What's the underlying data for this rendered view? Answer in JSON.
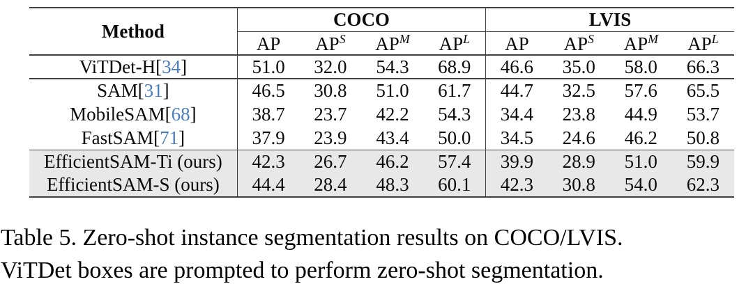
{
  "colors": {
    "citation_blue": "#4a7dbd",
    "row_highlight": "#e8e8e8",
    "rule_dark": "#404040"
  },
  "table": {
    "method_header": "Method",
    "groups": [
      {
        "label": "COCO"
      },
      {
        "label": "LVIS"
      }
    ],
    "subheaders": [
      {
        "base": "AP",
        "sup": ""
      },
      {
        "base": "AP",
        "sup": "S"
      },
      {
        "base": "AP",
        "sup": "M"
      },
      {
        "base": "AP",
        "sup": "L"
      }
    ],
    "rows": [
      {
        "method_pre": "ViTDet-H[",
        "cite": "34",
        "method_post": "]",
        "values": [
          "51.0",
          "32.0",
          "54.3",
          "68.9",
          "46.6",
          "35.0",
          "58.0",
          "66.3"
        ],
        "highlight": false,
        "rule_after": "thick"
      },
      {
        "method_pre": "SAM[",
        "cite": "31",
        "method_post": "]",
        "values": [
          "46.5",
          "30.8",
          "51.0",
          "61.7",
          "44.7",
          "32.5",
          "57.6",
          "65.5"
        ],
        "highlight": false,
        "rule_after": ""
      },
      {
        "method_pre": "MobileSAM[",
        "cite": "68",
        "method_post": "]",
        "values": [
          "38.7",
          "23.7",
          "42.2",
          "54.3",
          "34.4",
          "23.8",
          "44.9",
          "53.7"
        ],
        "highlight": false,
        "rule_after": ""
      },
      {
        "method_pre": "FastSAM[",
        "cite": "71",
        "method_post": "]",
        "values": [
          "37.9",
          "23.9",
          "43.4",
          "50.0",
          "34.5",
          "24.6",
          "46.2",
          "50.8"
        ],
        "highlight": false,
        "rule_after": "thin"
      },
      {
        "method_pre": "EfficientSAM-Ti (ours)",
        "cite": "",
        "method_post": "",
        "values": [
          "42.3",
          "26.7",
          "46.2",
          "57.4",
          "39.9",
          "28.9",
          "51.0",
          "59.9"
        ],
        "highlight": true,
        "rule_after": ""
      },
      {
        "method_pre": "EfficientSAM-S (ours)",
        "cite": "",
        "method_post": "",
        "values": [
          "44.4",
          "28.4",
          "48.3",
          "60.1",
          "42.3",
          "30.8",
          "54.0",
          "62.3"
        ],
        "highlight": true,
        "rule_after": ""
      }
    ]
  },
  "caption": {
    "line1": "Table 5. Zero-shot instance segmentation results on COCO/LVIS.",
    "line2": "ViTDet boxes are prompted to perform zero-shot segmentation."
  }
}
